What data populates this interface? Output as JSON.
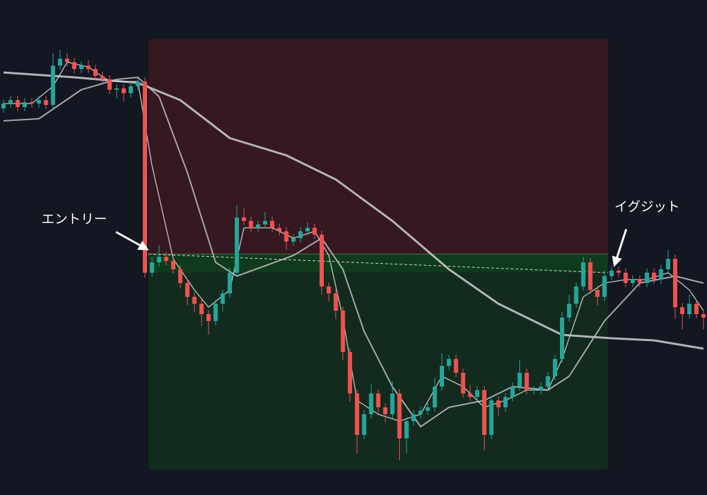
{
  "chart_data": {
    "type": "candlestick",
    "ylim": [
      0,
      717
    ],
    "up_color": "#26a69a",
    "down_color": "#ef5350",
    "candles": {
      "open": [
        560,
        567,
        572,
        562,
        569,
        567,
        572,
        565,
        622,
        632,
        627,
        617,
        622,
        617,
        607,
        602,
        587,
        589,
        582,
        592,
        599,
        322,
        337,
        345,
        339,
        327,
        307,
        287,
        277,
        262,
        252,
        277,
        292,
        322,
        402,
        397,
        387,
        392,
        397,
        387,
        382,
        367,
        372,
        382,
        387,
        377,
        302,
        292,
        267,
        207,
        147,
        87,
        117,
        147,
        127,
        117,
        147,
        82,
        107,
        117,
        122,
        127,
        157,
        187,
        197,
        177,
        147,
        142,
        152,
        87,
        137,
        127,
        142,
        157,
        177,
        152,
        152,
        157,
        172,
        197,
        257,
        277,
        302,
        337,
        297,
        287,
        317,
        325,
        322,
        307,
        312,
        307,
        322,
        312,
        327,
        342,
        272,
        262,
        277,
        262
      ],
      "high": [
        573,
        578,
        578,
        575,
        575,
        578,
        578,
        640,
        645,
        640,
        633,
        628,
        630,
        623,
        613,
        608,
        595,
        595,
        598,
        605,
        605,
        345,
        362,
        352,
        345,
        333,
        313,
        293,
        283,
        268,
        283,
        298,
        330,
        420,
        415,
        403,
        398,
        410,
        403,
        393,
        388,
        378,
        388,
        395,
        393,
        383,
        308,
        298,
        273,
        213,
        153,
        123,
        160,
        153,
        133,
        165,
        153,
        113,
        123,
        128,
        133,
        170,
        205,
        203,
        203,
        183,
        160,
        158,
        158,
        143,
        143,
        148,
        163,
        195,
        183,
        158,
        163,
        178,
        203,
        265,
        290,
        308,
        345,
        343,
        303,
        325,
        331,
        331,
        328,
        318,
        318,
        328,
        328,
        333,
        355,
        348,
        278,
        290,
        283,
        268
      ],
      "low": [
        554,
        561,
        556,
        556,
        561,
        561,
        559,
        559,
        616,
        621,
        611,
        611,
        611,
        601,
        596,
        581,
        575,
        570,
        576,
        586,
        315,
        316,
        331,
        333,
        321,
        299,
        275,
        265,
        245,
        232,
        246,
        266,
        286,
        316,
        391,
        381,
        381,
        386,
        381,
        376,
        355,
        361,
        366,
        376,
        371,
        290,
        280,
        255,
        195,
        135,
        60,
        81,
        111,
        115,
        105,
        111,
        50,
        60,
        101,
        111,
        116,
        121,
        151,
        181,
        171,
        141,
        136,
        136,
        65,
        81,
        115,
        121,
        136,
        151,
        146,
        146,
        146,
        151,
        166,
        191,
        251,
        271,
        296,
        291,
        275,
        281,
        311,
        316,
        301,
        301,
        301,
        301,
        306,
        306,
        321,
        255,
        240,
        256,
        256,
        240
      ],
      "close": [
        567,
        572,
        562,
        569,
        567,
        572,
        565,
        622,
        632,
        627,
        617,
        622,
        617,
        607,
        602,
        587,
        589,
        582,
        592,
        599,
        322,
        337,
        345,
        339,
        327,
        307,
        287,
        277,
        262,
        252,
        277,
        292,
        322,
        402,
        397,
        387,
        392,
        397,
        387,
        382,
        367,
        372,
        382,
        387,
        377,
        302,
        292,
        267,
        207,
        147,
        87,
        117,
        147,
        127,
        117,
        147,
        82,
        107,
        117,
        122,
        127,
        157,
        187,
        197,
        177,
        147,
        142,
        152,
        87,
        137,
        127,
        142,
        157,
        177,
        152,
        152,
        157,
        172,
        197,
        257,
        277,
        302,
        337,
        297,
        287,
        317,
        325,
        322,
        307,
        312,
        307,
        322,
        312,
        327,
        342,
        272,
        262,
        277,
        262,
        257
      ]
    },
    "lines": [
      {
        "color": "#c4c4c8",
        "x": [
          0,
          10,
          19,
          25,
          32,
          40,
          47,
          55,
          63,
          70,
          79,
          86,
          92,
          99
        ],
        "values": [
          612,
          605,
          597,
          572,
          517,
          492,
          457,
          397,
          327,
          277,
          232,
          227,
          224,
          212
        ]
      },
      {
        "color": "#b8b8bc",
        "x": [
          0,
          5,
          11,
          16,
          19,
          22,
          26,
          30,
          33,
          37,
          41,
          45,
          48,
          51,
          55,
          59,
          63,
          68,
          72,
          77,
          80,
          85,
          90,
          95,
          99
        ],
        "values": [
          542,
          545,
          587,
          602,
          605,
          577,
          467,
          337,
          317,
          332,
          347,
          372,
          327,
          237,
          157,
          99,
          127,
          137,
          157,
          152,
          172,
          252,
          307,
          317,
          307
        ]
      },
      {
        "color": "#d8d8dc",
        "x": [
          0,
          4,
          7,
          9,
          12,
          15,
          19,
          21,
          24,
          27,
          29,
          32,
          34,
          38,
          41,
          44,
          46,
          48,
          50,
          53,
          56,
          59,
          62,
          65,
          68,
          71,
          74,
          77,
          79,
          82,
          85,
          88,
          91,
          94,
          97,
          99
        ],
        "values": [
          567,
          567,
          592,
          627,
          620,
          599,
          599,
          477,
          342,
          297,
          272,
          297,
          387,
          387,
          372,
          382,
          347,
          257,
          137,
          117,
          107,
          117,
          172,
          157,
          127,
          137,
          152,
          152,
          197,
          287,
          307,
          312,
          312,
          322,
          297,
          267
        ]
      }
    ],
    "position": {
      "start": 21,
      "end": 85,
      "stop": 660,
      "entry": 349,
      "exit": 322,
      "target": 37
    },
    "annotations": [
      "エントリー",
      "イグジット"
    ]
  }
}
